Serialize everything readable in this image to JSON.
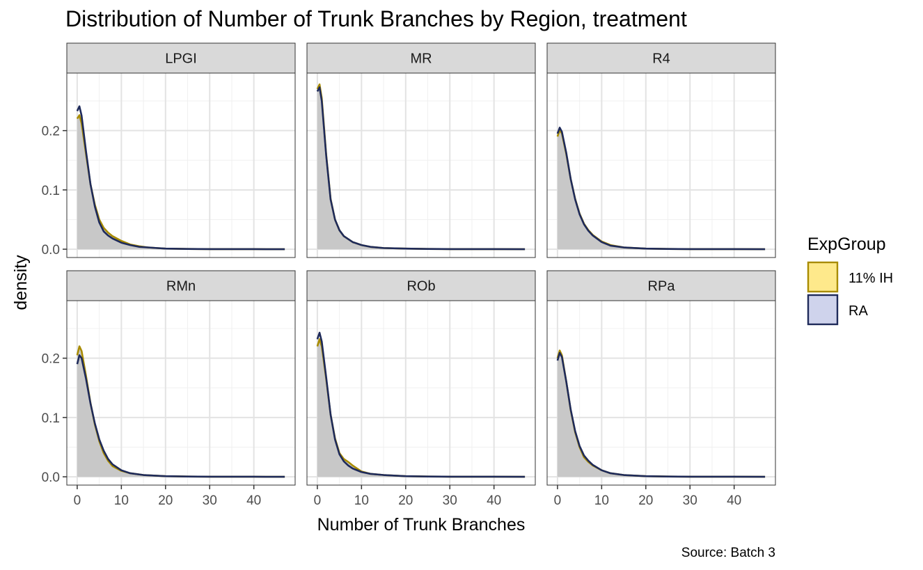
{
  "chart_data": {
    "type": "area",
    "title": "Distribution of Number of Trunk Branches by Region, treatment",
    "xlabel": "Number of Trunk Branches",
    "ylabel": "density",
    "caption": "Source: Batch 3",
    "xlim": [
      -2.35,
      49.35
    ],
    "ylim": [
      -0.014,
      0.297
    ],
    "x_ticks": [
      0,
      10,
      20,
      30,
      40
    ],
    "y_ticks": [
      0.0,
      0.1,
      0.2
    ],
    "y_tick_labels": [
      "0.0",
      "0.1",
      "0.2"
    ],
    "grid": true,
    "facet_layout": {
      "rows": 2,
      "cols": 3
    },
    "legend": {
      "title": "ExpGroup",
      "position": "right",
      "entries": [
        {
          "label": "11% IH",
          "fill": "#fee98b",
          "line": "#a88b00"
        },
        {
          "label": "RA",
          "fill": "#cfd3ec",
          "line": "#1e2a5a"
        }
      ]
    },
    "area_fill": "#c8c8c8",
    "panels": [
      {
        "name": "LPGI",
        "series": [
          {
            "name": "11% IH",
            "x": [
              0,
              0.5,
              1,
              2,
              3,
              4,
              5,
              6,
              7,
              8,
              10,
              12,
              14,
              16,
              18,
              20,
              25,
              30,
              40,
              47
            ],
            "y": [
              0.22,
              0.226,
              0.212,
              0.16,
              0.11,
              0.075,
              0.05,
              0.036,
              0.028,
              0.022,
              0.014,
              0.008,
              0.005,
              0.003,
              0.002,
              0.001,
              0.0005,
              0.0002,
              0.0001,
              0
            ]
          },
          {
            "name": "RA",
            "x": [
              0,
              0.5,
              1,
              2,
              3,
              4,
              5,
              6,
              7,
              8,
              10,
              12,
              14,
              16,
              18,
              20,
              25,
              30,
              40,
              47
            ],
            "y": [
              0.233,
              0.241,
              0.225,
              0.165,
              0.11,
              0.072,
              0.045,
              0.03,
              0.023,
              0.018,
              0.011,
              0.007,
              0.004,
              0.003,
              0.002,
              0.001,
              0.0005,
              0.0002,
              0.0001,
              0
            ]
          }
        ]
      },
      {
        "name": "MR",
        "series": [
          {
            "name": "11% IH",
            "x": [
              0,
              0.5,
              1,
              2,
              3,
              4,
              5,
              6,
              8,
              10,
              12,
              15,
              20,
              25,
              30,
              40,
              47
            ],
            "y": [
              0.27,
              0.278,
              0.255,
              0.16,
              0.085,
              0.05,
              0.032,
              0.022,
              0.012,
              0.007,
              0.004,
              0.002,
              0.001,
              0.0005,
              0.0002,
              0.0001,
              0
            ]
          },
          {
            "name": "RA",
            "x": [
              0,
              0.5,
              1,
              2,
              3,
              4,
              5,
              6,
              8,
              10,
              12,
              15,
              20,
              25,
              30,
              40,
              47
            ],
            "y": [
              0.266,
              0.273,
              0.25,
              0.158,
              0.084,
              0.05,
              0.032,
              0.022,
              0.012,
              0.007,
              0.004,
              0.002,
              0.001,
              0.0005,
              0.0002,
              0.0001,
              0
            ]
          }
        ]
      },
      {
        "name": "R4",
        "series": [
          {
            "name": "11% IH",
            "x": [
              0,
              0.5,
              1,
              2,
              3,
              4,
              5,
              6,
              7,
              8,
              10,
              12,
              15,
              20,
              25,
              30,
              40,
              47
            ],
            "y": [
              0.19,
              0.201,
              0.195,
              0.16,
              0.118,
              0.085,
              0.06,
              0.043,
              0.032,
              0.024,
              0.013,
              0.007,
              0.003,
              0.001,
              0.0005,
              0.0002,
              0.0001,
              0
            ]
          },
          {
            "name": "RA",
            "x": [
              0,
              0.5,
              1,
              2,
              3,
              4,
              5,
              6,
              7,
              8,
              10,
              12,
              15,
              20,
              25,
              30,
              40,
              47
            ],
            "y": [
              0.195,
              0.205,
              0.198,
              0.162,
              0.118,
              0.084,
              0.059,
              0.042,
              0.031,
              0.023,
              0.012,
              0.006,
              0.003,
              0.001,
              0.0005,
              0.0002,
              0.0001,
              0
            ]
          }
        ]
      },
      {
        "name": "RMn",
        "series": [
          {
            "name": "11% IH",
            "x": [
              0,
              0.5,
              1,
              2,
              3,
              4,
              5,
              6,
              7,
              8,
              10,
              12,
              15,
              20,
              25,
              30,
              40,
              47
            ],
            "y": [
              0.205,
              0.22,
              0.212,
              0.17,
              0.125,
              0.088,
              0.06,
              0.04,
              0.027,
              0.018,
              0.01,
              0.006,
              0.003,
              0.001,
              0.0005,
              0.0002,
              0.0001,
              0
            ]
          },
          {
            "name": "RA",
            "x": [
              0,
              0.5,
              1,
              2,
              3,
              4,
              5,
              6,
              7,
              8,
              10,
              12,
              15,
              20,
              25,
              30,
              40,
              47
            ],
            "y": [
              0.19,
              0.205,
              0.2,
              0.165,
              0.124,
              0.09,
              0.063,
              0.044,
              0.03,
              0.021,
              0.011,
              0.006,
              0.003,
              0.001,
              0.0005,
              0.0002,
              0.0001,
              0
            ]
          }
        ]
      },
      {
        "name": "ROb",
        "series": [
          {
            "name": "11% IH",
            "x": [
              0,
              0.5,
              1,
              2,
              3,
              4,
              5,
              6,
              7,
              8,
              10,
              12,
              15,
              20,
              25,
              30,
              40,
              47
            ],
            "y": [
              0.22,
              0.232,
              0.22,
              0.165,
              0.105,
              0.065,
              0.04,
              0.03,
              0.025,
              0.019,
              0.009,
              0.005,
              0.003,
              0.001,
              0.0005,
              0.0002,
              0.0001,
              0
            ]
          },
          {
            "name": "RA",
            "x": [
              0,
              0.5,
              1,
              2,
              3,
              4,
              5,
              6,
              7,
              8,
              10,
              12,
              15,
              20,
              25,
              30,
              40,
              47
            ],
            "y": [
              0.232,
              0.243,
              0.228,
              0.168,
              0.105,
              0.063,
              0.038,
              0.026,
              0.019,
              0.014,
              0.008,
              0.005,
              0.003,
              0.001,
              0.0005,
              0.0002,
              0.0001,
              0
            ]
          }
        ]
      },
      {
        "name": "RPa",
        "series": [
          {
            "name": "11% IH",
            "x": [
              0,
              0.5,
              1,
              2,
              3,
              4,
              5,
              6,
              7,
              8,
              10,
              12,
              15,
              20,
              25,
              30,
              40,
              47
            ],
            "y": [
              0.2,
              0.213,
              0.205,
              0.16,
              0.112,
              0.075,
              0.05,
              0.033,
              0.025,
              0.019,
              0.011,
              0.006,
              0.003,
              0.001,
              0.0005,
              0.0002,
              0.0001,
              0
            ]
          },
          {
            "name": "RA",
            "x": [
              0,
              0.5,
              1,
              2,
              3,
              4,
              5,
              6,
              7,
              8,
              10,
              12,
              15,
              20,
              25,
              30,
              40,
              47
            ],
            "y": [
              0.196,
              0.209,
              0.202,
              0.16,
              0.113,
              0.077,
              0.052,
              0.036,
              0.027,
              0.02,
              0.011,
              0.006,
              0.003,
              0.001,
              0.0005,
              0.0002,
              0.0001,
              0
            ]
          }
        ]
      }
    ]
  }
}
